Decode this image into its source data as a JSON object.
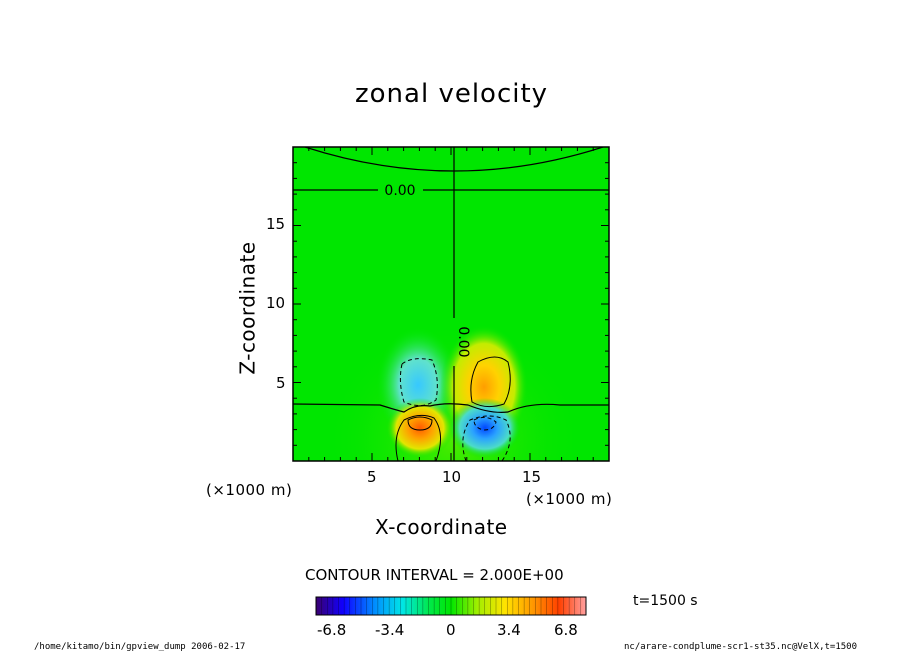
{
  "chart_data": {
    "type": "heatmap",
    "title": "zonal velocity",
    "xlabel": "X-coordinate",
    "ylabel": "Z-coordinate",
    "x_multiplier": "(×1000 m)",
    "z_multiplier": "(×1000 m)",
    "xlim": [
      0,
      20
    ],
    "zlim": [
      0,
      20
    ],
    "x_ticks": [
      "5",
      "10",
      "15"
    ],
    "z_ticks": [
      "5",
      "10",
      "15"
    ],
    "contour_labels": [
      "0.00",
      "0.00"
    ],
    "contour_interval": "CONTOUR INTERVAL = 2.000E+00",
    "colorbar_ticks": [
      "-6.8",
      "-3.4",
      "0",
      "3.4",
      "6.8"
    ],
    "colorbar_range": [
      -8.5,
      8.5
    ],
    "time": "t=1500 s",
    "features": [
      {
        "kind": "negative",
        "x": 8.1,
        "z": 4.9,
        "peak": -3.5
      },
      {
        "kind": "positive",
        "x": 12.1,
        "z": 4.8,
        "peak": 4.5
      },
      {
        "kind": "positive",
        "x": 8.0,
        "z": 2.4,
        "peak": 6.4
      },
      {
        "kind": "negative",
        "x": 12.0,
        "z": 2.2,
        "peak": -5.4
      }
    ]
  },
  "footer": {
    "left": "/home/kitamo/bin/gpview_dump  2006-02-17",
    "right": "nc/arare-condplume-scr1-st35.nc@VelX,t=1500"
  },
  "colors": {
    "background": "#00e600",
    "positive": "#ff4000",
    "negative": "#0040ff"
  }
}
